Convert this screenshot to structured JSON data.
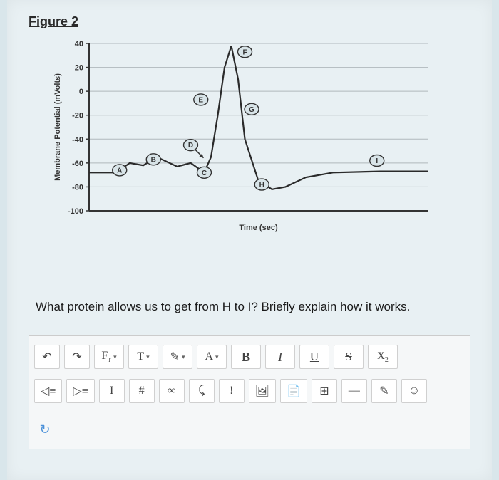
{
  "figure": {
    "title": "Figure 2",
    "chart": {
      "type": "line",
      "ylabel": "Membrane Potential (mVolts)",
      "xlabel": "Time (sec)",
      "ylim": [
        -100,
        40
      ],
      "ytick_step": 20,
      "yticks": [
        40,
        20,
        0,
        -20,
        -40,
        -60,
        -80,
        -100
      ],
      "grid_color": "#b0b8bc",
      "axis_color": "#333333",
      "line_color": "#2a2a2a",
      "background_color": "#e8f0f3",
      "label_fontsize": 11,
      "tick_fontsize": 11,
      "series": {
        "x": [
          0,
          8,
          12,
          16,
          20,
          26,
          30,
          34,
          36,
          38,
          40,
          42,
          44,
          46,
          50,
          54,
          58,
          64,
          72,
          86,
          100
        ],
        "y": [
          -68,
          -68,
          -60,
          -62,
          -55,
          -63,
          -60,
          -68,
          -55,
          -20,
          20,
          38,
          10,
          -40,
          -75,
          -82,
          -80,
          -72,
          -68,
          -67,
          -67
        ]
      },
      "markers": [
        {
          "label": "A",
          "x": 9,
          "y": -66
        },
        {
          "label": "B",
          "x": 19,
          "y": -57
        },
        {
          "label": "C",
          "x": 34,
          "y": -68
        },
        {
          "label": "D",
          "x": 30,
          "y": -45,
          "arrow": true
        },
        {
          "label": "E",
          "x": 33,
          "y": -7
        },
        {
          "label": "F",
          "x": 46,
          "y": 33
        },
        {
          "label": "G",
          "x": 48,
          "y": -15
        },
        {
          "label": "H",
          "x": 51,
          "y": -78
        },
        {
          "label": "I",
          "x": 85,
          "y": -58
        }
      ],
      "marker_fill": "#d8e4e8",
      "marker_stroke": "#333333",
      "marker_radius": 8
    }
  },
  "question": {
    "text": "What protein allows us to get from H to I? Briefly explain how it works."
  },
  "toolbar": {
    "row1": {
      "undo": "↶",
      "redo": "↷",
      "font": "F",
      "textsize": "T",
      "highlight": "✎",
      "textcolor": "A",
      "bold": "B",
      "italic": "I",
      "underline": "U",
      "strike": "S",
      "subscript": "X"
    },
    "row2": {
      "outdent": "≡",
      "indent": "≡",
      "clearfmt": "I",
      "hash": "#",
      "link": "🔗",
      "unlink": "⟲",
      "exclaim": "!",
      "image": "▣",
      "paste": "📋",
      "table": "⊞",
      "hr": "—",
      "edit": "✎",
      "emoji": "☺"
    },
    "refresh": "↻"
  }
}
